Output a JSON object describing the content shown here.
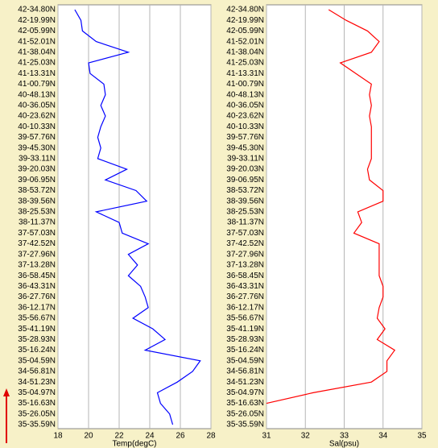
{
  "chart_data": [
    {
      "type": "line",
      "xlabel": "Temp(degC)",
      "color": "#0000ff",
      "categories": [
        "42-34.80N",
        "42-19.99N",
        "42-05.99N",
        "41-52.01N",
        "41-38.04N",
        "41-25.03N",
        "41-13.31N",
        "41-00.79N",
        "40-48.13N",
        "40-36.05N",
        "40-23.62N",
        "40-10.33N",
        "39-57.76N",
        "39-45.30N",
        "39-33.11N",
        "39-20.03N",
        "39-06.95N",
        "38-53.72N",
        "38-39.56N",
        "38-25.53N",
        "38-11.37N",
        "37-57.03N",
        "37-42.52N",
        "37-27.96N",
        "37-13.28N",
        "36-58.45N",
        "36-43.31N",
        "36-27.76N",
        "36-12.17N",
        "35-56.67N",
        "35-41.19N",
        "35-28.93N",
        "35-16.24N",
        "35-04.59N",
        "34-56.81N",
        "34-51.23N",
        "35-04.97N",
        "35-16.63N",
        "35-26.05N",
        "35-35.59N"
      ],
      "values": [
        19.1,
        19.5,
        19.6,
        20.5,
        22.6,
        20.0,
        20.1,
        21.0,
        21.1,
        20.8,
        21.1,
        20.8,
        20.6,
        20.8,
        20.6,
        22.5,
        21.1,
        23.1,
        23.8,
        20.5,
        22.0,
        22.2,
        23.9,
        22.6,
        23.2,
        22.6,
        23.4,
        23.7,
        23.9,
        22.9,
        24.2,
        25.0,
        23.7,
        27.3,
        26.8,
        25.8,
        24.5,
        24.7,
        25.3,
        25.5
      ],
      "xlim": [
        18,
        28
      ],
      "xticks": [
        18,
        20,
        22,
        24,
        26,
        28
      ],
      "grid": true
    },
    {
      "type": "line",
      "xlabel": "Sal(psu)",
      "color": "#ff0000",
      "categories": [
        "42-34.80N",
        "42-19.99N",
        "42-05.99N",
        "41-52.01N",
        "41-38.04N",
        "41-25.03N",
        "41-13.31N",
        "41-00.79N",
        "40-48.13N",
        "40-36.05N",
        "40-23.62N",
        "40-10.33N",
        "39-57.76N",
        "39-45.30N",
        "39-33.11N",
        "39-20.03N",
        "39-06.95N",
        "38-53.72N",
        "38-39.56N",
        "38-25.53N",
        "38-11.37N",
        "37-57.03N",
        "37-42.52N",
        "37-27.96N",
        "37-13.28N",
        "36-58.45N",
        "36-43.31N",
        "36-27.76N",
        "36-12.17N",
        "35-56.67N",
        "35-41.19N",
        "35-28.93N",
        "35-16.24N",
        "35-04.59N",
        "34-56.81N",
        "34-51.23N",
        "35-04.97N",
        "35-16.63N",
        "35-26.05N",
        "35-35.59N"
      ],
      "values": [
        32.6,
        33.05,
        33.6,
        33.9,
        33.7,
        32.9,
        33.3,
        33.7,
        33.65,
        33.7,
        33.65,
        33.7,
        33.7,
        33.7,
        33.7,
        33.6,
        33.65,
        34.0,
        34.0,
        33.35,
        33.45,
        33.25,
        33.9,
        33.9,
        33.9,
        33.9,
        34.0,
        34.0,
        33.9,
        33.85,
        34.05,
        33.85,
        34.3,
        34.1,
        34.1,
        33.7,
        32.2,
        31.0,
        null,
        null
      ],
      "xlim": [
        31,
        35
      ],
      "xticks": [
        31,
        32,
        33,
        34,
        35
      ],
      "grid": true
    }
  ]
}
